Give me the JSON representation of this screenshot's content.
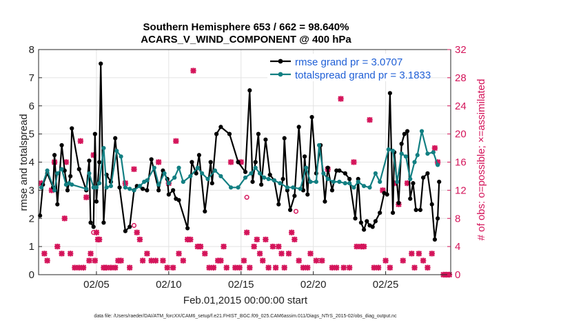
{
  "chart_data": {
    "type": "line",
    "title": "Southern Hemisphere 653 / 662 = 98.640%",
    "subtitle": "ACARS_V_WIND_COMPONENT @ 400 hPa",
    "xlabel": "Feb.01,2015 00:00:00 start",
    "ylabel": "rmse and totalspread",
    "ylabel_right": "# of obs: o=possible; ×=assimilated",
    "footnote": "data file: /Users/raeder/DAI/ATM_forcXX/CAM6_setup/f.e21.FHIST_BGC.f09_025.CAM6assim.011/Diags_NTrS_2015-02/obs_diag_output.nc",
    "x_range": [
      1.0,
      29.5
    ],
    "ylim": [
      0,
      8
    ],
    "ylim_right": [
      0,
      32
    ],
    "yticks_left": [
      "0",
      "1",
      "2",
      "3",
      "4",
      "5",
      "6",
      "7",
      "8"
    ],
    "yticks_right": [
      "0",
      "4",
      "8",
      "12",
      "16",
      "20",
      "24",
      "28",
      "32"
    ],
    "xticks": [
      {
        "x": 5,
        "label": "02/05"
      },
      {
        "x": 10,
        "label": "02/10"
      },
      {
        "x": 15,
        "label": "02/15"
      },
      {
        "x": 20,
        "label": "02/20"
      },
      {
        "x": 25,
        "label": "02/25"
      }
    ],
    "grid": true,
    "legend_position": "top-right",
    "series": [
      {
        "name": "rmse grand pr = 3.0707",
        "color": "#000000",
        "marker": "circle",
        "points": [
          [
            1.1,
            2.1
          ],
          [
            1.3,
            3.2
          ],
          [
            1.6,
            3.6
          ],
          [
            2.0,
            3.1
          ],
          [
            2.1,
            4.25
          ],
          [
            2.3,
            2.5
          ],
          [
            2.6,
            4.6
          ],
          [
            2.8,
            3.7
          ],
          [
            3.0,
            3.0
          ],
          [
            3.2,
            3.5
          ],
          [
            3.3,
            5.2
          ],
          [
            3.8,
            3.75
          ],
          [
            4.3,
            3.0
          ],
          [
            4.5,
            4.05
          ],
          [
            4.6,
            1.85
          ],
          [
            4.8,
            1.7
          ],
          [
            4.9,
            5.0
          ],
          [
            5.0,
            2.6
          ],
          [
            5.2,
            4.0
          ],
          [
            5.3,
            7.5
          ],
          [
            5.5,
            1.85
          ],
          [
            5.7,
            3.55
          ],
          [
            6.0,
            3.3
          ],
          [
            6.3,
            4.85
          ],
          [
            6.6,
            3.1
          ],
          [
            7.0,
            1.55
          ],
          [
            7.3,
            1.7
          ],
          [
            7.6,
            3.0
          ],
          [
            7.8,
            3.15
          ],
          [
            8.2,
            3.05
          ],
          [
            8.5,
            3.0
          ],
          [
            8.8,
            4.1
          ],
          [
            9.3,
            3.0
          ],
          [
            9.6,
            3.7
          ],
          [
            9.9,
            3.4
          ],
          [
            10.0,
            2.85
          ],
          [
            10.3,
            3.0
          ],
          [
            10.5,
            2.7
          ],
          [
            10.7,
            2.65
          ],
          [
            11.3,
            1.65
          ],
          [
            11.6,
            4.0
          ],
          [
            11.9,
            3.6
          ],
          [
            12.1,
            4.25
          ],
          [
            12.5,
            2.25
          ],
          [
            12.9,
            4.0
          ],
          [
            13.0,
            3.25
          ],
          [
            13.3,
            5.0
          ],
          [
            13.6,
            5.25
          ],
          [
            14.2,
            5.0
          ],
          [
            14.8,
            4.0
          ],
          [
            15.3,
            3.65
          ],
          [
            15.6,
            6.55
          ],
          [
            15.8,
            3.3
          ],
          [
            16.0,
            4.0
          ],
          [
            16.2,
            5.0
          ],
          [
            16.4,
            3.2
          ],
          [
            16.7,
            4.8
          ],
          [
            17.0,
            3.55
          ],
          [
            17.3,
            3.35
          ],
          [
            17.6,
            2.5
          ],
          [
            17.9,
            3.4
          ],
          [
            18.0,
            4.85
          ],
          [
            18.2,
            3.0
          ],
          [
            18.4,
            2.3
          ],
          [
            18.7,
            2.8
          ],
          [
            19.0,
            5.25
          ],
          [
            19.3,
            3.0
          ],
          [
            19.4,
            4.2
          ],
          [
            19.6,
            2.85
          ],
          [
            19.9,
            5.6
          ],
          [
            20.2,
            3.6
          ],
          [
            20.5,
            4.6
          ],
          [
            20.8,
            2.6
          ],
          [
            21.0,
            3.8
          ],
          [
            21.3,
            3.0
          ],
          [
            21.6,
            3.7
          ],
          [
            21.8,
            3.7
          ],
          [
            22.2,
            3.6
          ],
          [
            22.5,
            3.4
          ],
          [
            22.9,
            2.0
          ],
          [
            23.1,
            3.4
          ],
          [
            23.3,
            1.85
          ],
          [
            23.5,
            1.6
          ],
          [
            23.7,
            1.9
          ],
          [
            23.9,
            1.75
          ],
          [
            24.1,
            1.7
          ],
          [
            24.3,
            1.9
          ],
          [
            24.6,
            2.2
          ],
          [
            24.9,
            2.9
          ],
          [
            25.1,
            2.85
          ],
          [
            25.3,
            6.45
          ],
          [
            25.5,
            2.2
          ],
          [
            25.6,
            4.35
          ],
          [
            25.9,
            2.55
          ],
          [
            26.1,
            4.65
          ],
          [
            26.3,
            5.0
          ],
          [
            26.5,
            5.1
          ],
          [
            26.7,
            2.7
          ],
          [
            26.9,
            3.25
          ],
          [
            27.1,
            2.3
          ],
          [
            27.4,
            2.3
          ],
          [
            27.6,
            3.45
          ],
          [
            27.9,
            3.6
          ],
          [
            28.2,
            2.5
          ],
          [
            28.4,
            1.25
          ],
          [
            28.6,
            2.0
          ],
          [
            28.7,
            3.3
          ]
        ]
      },
      {
        "name": "totalspread grand pr = 3.1833",
        "color": "#127f82",
        "marker": "circle",
        "points": [
          [
            1.2,
            3.1
          ],
          [
            1.6,
            3.7
          ],
          [
            2.1,
            3.0
          ],
          [
            2.3,
            3.6
          ],
          [
            2.6,
            3.75
          ],
          [
            2.9,
            3.2
          ],
          [
            3.1,
            3.25
          ],
          [
            3.3,
            3.2
          ],
          [
            4.3,
            3.05
          ],
          [
            4.5,
            3.6
          ],
          [
            4.8,
            3.1
          ],
          [
            5.0,
            3.1
          ],
          [
            5.2,
            3.25
          ],
          [
            5.5,
            4.5
          ],
          [
            5.7,
            3.1
          ],
          [
            6.0,
            3.15
          ],
          [
            6.4,
            4.4
          ],
          [
            6.7,
            4.2
          ],
          [
            7.0,
            3.1
          ],
          [
            7.3,
            3.05
          ],
          [
            7.6,
            3.0
          ],
          [
            8.0,
            3.15
          ],
          [
            8.3,
            3.3
          ],
          [
            8.5,
            3.35
          ],
          [
            9.0,
            3.8
          ],
          [
            9.3,
            3.2
          ],
          [
            9.7,
            3.6
          ],
          [
            10.0,
            3.25
          ],
          [
            10.4,
            3.45
          ],
          [
            10.7,
            3.8
          ],
          [
            11.0,
            3.3
          ],
          [
            11.5,
            3.5
          ],
          [
            12.0,
            3.8
          ],
          [
            12.3,
            3.6
          ],
          [
            12.7,
            3.4
          ],
          [
            13.2,
            3.7
          ],
          [
            13.6,
            3.5
          ],
          [
            14.3,
            3.1
          ],
          [
            14.8,
            3.1
          ],
          [
            15.3,
            3.45
          ],
          [
            15.7,
            3.6
          ],
          [
            16.0,
            3.8
          ],
          [
            16.3,
            3.6
          ],
          [
            16.6,
            3.45
          ],
          [
            16.9,
            3.4
          ],
          [
            17.3,
            3.35
          ],
          [
            17.7,
            3.25
          ],
          [
            18.2,
            3.1
          ],
          [
            18.6,
            3.1
          ],
          [
            19.1,
            3.05
          ],
          [
            19.5,
            3.8
          ],
          [
            19.8,
            3.3
          ],
          [
            20.2,
            3.3
          ],
          [
            20.4,
            4.6
          ],
          [
            20.7,
            3.6
          ],
          [
            21.0,
            3.4
          ],
          [
            21.4,
            3.3
          ],
          [
            21.8,
            3.3
          ],
          [
            22.2,
            3.25
          ],
          [
            22.5,
            3.25
          ],
          [
            22.8,
            3.1
          ],
          [
            23.1,
            3.3
          ],
          [
            23.5,
            3.15
          ],
          [
            23.9,
            3.1
          ],
          [
            24.3,
            3.6
          ],
          [
            24.6,
            3.3
          ],
          [
            25.2,
            4.45
          ],
          [
            25.5,
            4.4
          ],
          [
            25.8,
            3.3
          ],
          [
            26.1,
            4.3
          ],
          [
            26.4,
            4.2
          ],
          [
            26.7,
            3.4
          ],
          [
            27.0,
            4.0
          ],
          [
            27.2,
            4.25
          ],
          [
            27.5,
            5.1
          ],
          [
            27.9,
            4.3
          ],
          [
            28.3,
            4.35
          ],
          [
            28.6,
            3.9
          ]
        ]
      }
    ],
    "obs_assimilated": {
      "name": "×=assimilated",
      "color": "#d4145a",
      "marker": "x",
      "points": [
        [
          1.2,
          13
        ],
        [
          1.4,
          3
        ],
        [
          1.6,
          2
        ],
        [
          1.9,
          12
        ],
        [
          2.1,
          16
        ],
        [
          2.3,
          4
        ],
        [
          2.6,
          3
        ],
        [
          2.8,
          8
        ],
        [
          2.9,
          16
        ],
        [
          3.2,
          3
        ],
        [
          3.5,
          1
        ],
        [
          3.8,
          1
        ],
        [
          3.9,
          19
        ],
        [
          4.1,
          1
        ],
        [
          4.3,
          11
        ],
        [
          4.5,
          2
        ],
        [
          4.6,
          3
        ],
        [
          4.8,
          17
        ],
        [
          4.9,
          2
        ],
        [
          5.0,
          6
        ],
        [
          5.1,
          5
        ],
        [
          5.2,
          5
        ],
        [
          5.5,
          1
        ],
        [
          5.7,
          1
        ],
        [
          6.0,
          1
        ],
        [
          6.3,
          1
        ],
        [
          6.5,
          2
        ],
        [
          6.7,
          2
        ],
        [
          7.0,
          13
        ],
        [
          7.3,
          1
        ],
        [
          7.6,
          15
        ],
        [
          7.8,
          6
        ],
        [
          8.0,
          5
        ],
        [
          8.2,
          2
        ],
        [
          8.5,
          3
        ],
        [
          8.8,
          2
        ],
        [
          9.1,
          2
        ],
        [
          9.3,
          16
        ],
        [
          9.6,
          2
        ],
        [
          9.9,
          1
        ],
        [
          10.0,
          13
        ],
        [
          10.3,
          1
        ],
        [
          10.5,
          19
        ],
        [
          10.7,
          3
        ],
        [
          11.0,
          2
        ],
        [
          11.3,
          5
        ],
        [
          11.5,
          5
        ],
        [
          11.7,
          29
        ],
        [
          12.0,
          4
        ],
        [
          12.2,
          4
        ],
        [
          12.5,
          3
        ],
        [
          12.8,
          1
        ],
        [
          13.1,
          1
        ],
        [
          13.4,
          2
        ],
        [
          13.6,
          2
        ],
        [
          13.8,
          4
        ],
        [
          14.0,
          1
        ],
        [
          14.3,
          16
        ],
        [
          14.6,
          1
        ],
        [
          14.9,
          1
        ],
        [
          15.0,
          16
        ],
        [
          15.2,
          2
        ],
        [
          15.4,
          6
        ],
        [
          15.6,
          1
        ],
        [
          15.9,
          4
        ],
        [
          16.1,
          5
        ],
        [
          16.3,
          3
        ],
        [
          16.5,
          2
        ],
        [
          16.7,
          5
        ],
        [
          16.9,
          1
        ],
        [
          17.2,
          4
        ],
        [
          17.4,
          1
        ],
        [
          17.6,
          4
        ],
        [
          17.8,
          3
        ],
        [
          18.0,
          1
        ],
        [
          18.3,
          3
        ],
        [
          18.5,
          6
        ],
        [
          18.7,
          5
        ],
        [
          19.0,
          2
        ],
        [
          19.3,
          1
        ],
        [
          19.6,
          1
        ],
        [
          19.8,
          3
        ],
        [
          20.2,
          2
        ],
        [
          20.6,
          2
        ],
        [
          21.0,
          15
        ],
        [
          21.3,
          1
        ],
        [
          21.6,
          1
        ],
        [
          21.9,
          25
        ],
        [
          22.1,
          1
        ],
        [
          22.5,
          1
        ],
        [
          22.8,
          16
        ],
        [
          23.0,
          4
        ],
        [
          23.3,
          4
        ],
        [
          23.5,
          4
        ],
        [
          23.9,
          22
        ],
        [
          24.2,
          1
        ],
        [
          24.5,
          1
        ],
        [
          24.8,
          12
        ],
        [
          25.0,
          2
        ],
        [
          25.3,
          1
        ],
        [
          25.6,
          13
        ],
        [
          25.9,
          10
        ],
        [
          26.2,
          2
        ],
        [
          26.5,
          13
        ],
        [
          26.8,
          3
        ],
        [
          27.0,
          1
        ],
        [
          27.3,
          3
        ],
        [
          27.6,
          2
        ],
        [
          27.9,
          1
        ],
        [
          28.2,
          3
        ],
        [
          28.4,
          18
        ],
        [
          28.6,
          16
        ],
        [
          29.0,
          0
        ],
        [
          29.2,
          0
        ],
        [
          29.4,
          0
        ]
      ]
    },
    "obs_possible": {
      "name": "o=possible",
      "color": "#d4145a",
      "marker": "circle-open",
      "points": [
        [
          2.1,
          16
        ],
        [
          4.8,
          6
        ],
        [
          7.6,
          7
        ],
        [
          15.4,
          11
        ],
        [
          18.8,
          9
        ],
        [
          20.4,
          2
        ]
      ]
    }
  }
}
